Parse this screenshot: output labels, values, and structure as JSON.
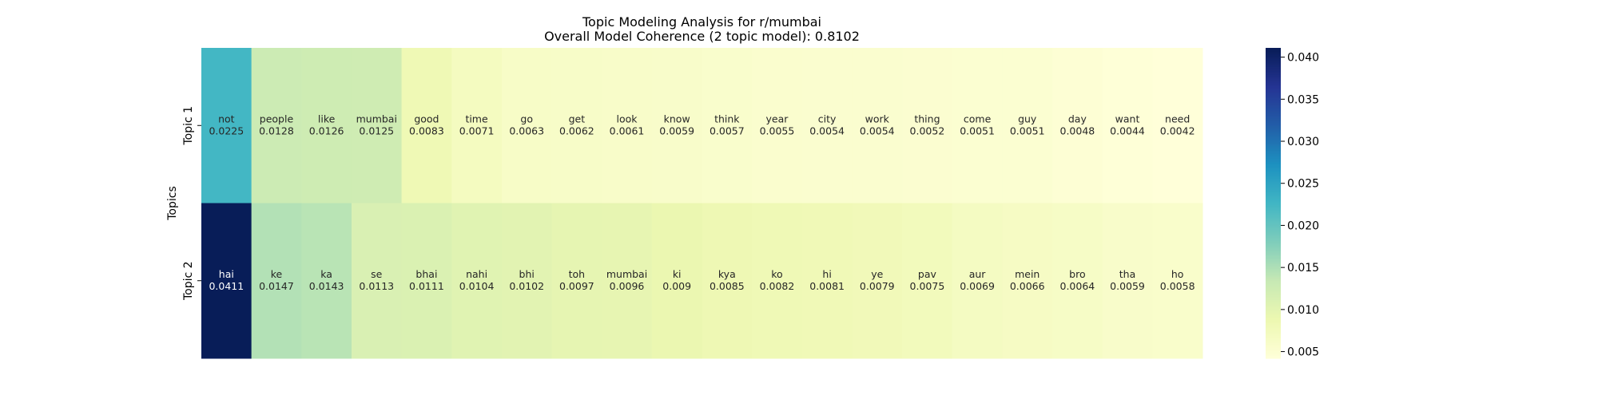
{
  "chart_data": {
    "type": "heatmap",
    "title": "Topic Modeling Analysis for r/mumbai",
    "subtitle": "Overall Model Coherence (2 topic model): 0.8102",
    "ylabel": "Topics",
    "rows": [
      "Topic 1",
      "Topic 2"
    ],
    "cells": [
      [
        {
          "word": "not",
          "value": 0.0225
        },
        {
          "word": "people",
          "value": 0.0128
        },
        {
          "word": "like",
          "value": 0.0126
        },
        {
          "word": "mumbai",
          "value": 0.0125
        },
        {
          "word": "good",
          "value": 0.0083
        },
        {
          "word": "time",
          "value": 0.0071
        },
        {
          "word": "go",
          "value": 0.0063
        },
        {
          "word": "get",
          "value": 0.0062
        },
        {
          "word": "look",
          "value": 0.0061
        },
        {
          "word": "know",
          "value": 0.0059
        },
        {
          "word": "think",
          "value": 0.0057
        },
        {
          "word": "year",
          "value": 0.0055
        },
        {
          "word": "city",
          "value": 0.0054
        },
        {
          "word": "work",
          "value": 0.0054
        },
        {
          "word": "thing",
          "value": 0.0052
        },
        {
          "word": "come",
          "value": 0.0051
        },
        {
          "word": "guy",
          "value": 0.0051
        },
        {
          "word": "day",
          "value": 0.0048
        },
        {
          "word": "want",
          "value": 0.0044
        },
        {
          "word": "need",
          "value": 0.0042
        }
      ],
      [
        {
          "word": "hai",
          "value": 0.0411
        },
        {
          "word": "ke",
          "value": 0.0147
        },
        {
          "word": "ka",
          "value": 0.0143
        },
        {
          "word": "se",
          "value": 0.0113
        },
        {
          "word": "bhai",
          "value": 0.0111
        },
        {
          "word": "nahi",
          "value": 0.0104
        },
        {
          "word": "bhi",
          "value": 0.0102
        },
        {
          "word": "toh",
          "value": 0.0097
        },
        {
          "word": "mumbai",
          "value": 0.0096
        },
        {
          "word": "ki",
          "value": 0.009
        },
        {
          "word": "kya",
          "value": 0.0085
        },
        {
          "word": "ko",
          "value": 0.0082
        },
        {
          "word": "hi",
          "value": 0.0081
        },
        {
          "word": "ye",
          "value": 0.0079
        },
        {
          "word": "pav",
          "value": 0.0075
        },
        {
          "word": "aur",
          "value": 0.0069
        },
        {
          "word": "mein",
          "value": 0.0066
        },
        {
          "word": "bro",
          "value": 0.0064
        },
        {
          "word": "tha",
          "value": 0.0059
        },
        {
          "word": "ho",
          "value": 0.0058
        }
      ]
    ],
    "colormap": "YlGnBu",
    "colorbar": {
      "range": [
        0.0042,
        0.0411
      ],
      "ticks": [
        "0.005",
        "0.010",
        "0.015",
        "0.020",
        "0.025",
        "0.030",
        "0.035",
        "0.040"
      ],
      "tick_values": [
        0.005,
        0.01,
        0.015,
        0.02,
        0.025,
        0.03,
        0.035,
        0.04
      ]
    },
    "grid": false,
    "legend": "colorbar-right"
  }
}
